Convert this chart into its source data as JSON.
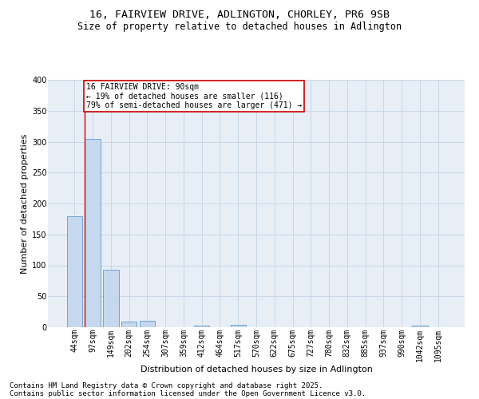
{
  "title_line1": "16, FAIRVIEW DRIVE, ADLINGTON, CHORLEY, PR6 9SB",
  "title_line2": "Size of property relative to detached houses in Adlington",
  "xlabel": "Distribution of detached houses by size in Adlington",
  "ylabel": "Number of detached properties",
  "categories": [
    "44sqm",
    "97sqm",
    "149sqm",
    "202sqm",
    "254sqm",
    "307sqm",
    "359sqm",
    "412sqm",
    "464sqm",
    "517sqm",
    "570sqm",
    "622sqm",
    "675sqm",
    "727sqm",
    "780sqm",
    "832sqm",
    "885sqm",
    "937sqm",
    "990sqm",
    "1042sqm",
    "1095sqm"
  ],
  "values": [
    180,
    305,
    93,
    9,
    10,
    0,
    0,
    3,
    0,
    4,
    0,
    0,
    0,
    0,
    0,
    0,
    0,
    0,
    0,
    3,
    0
  ],
  "bar_color": "#c5d8ed",
  "bar_edgecolor": "#5b9bd5",
  "vline_x_index": 0.575,
  "annotation_text": "16 FAIRVIEW DRIVE: 90sqm\n← 19% of detached houses are smaller (116)\n79% of semi-detached houses are larger (471) →",
  "annotation_box_color": "#ffffff",
  "annotation_box_edgecolor": "#cc0000",
  "vline_color": "#cc0000",
  "ylim": [
    0,
    400
  ],
  "yticks": [
    0,
    50,
    100,
    150,
    200,
    250,
    300,
    350,
    400
  ],
  "grid_color": "#c8d8e8",
  "background_color": "#e8eef5",
  "footer_line1": "Contains HM Land Registry data © Crown copyright and database right 2025.",
  "footer_line2": "Contains public sector information licensed under the Open Government Licence v3.0.",
  "title_fontsize": 9.5,
  "subtitle_fontsize": 8.5,
  "axis_label_fontsize": 8,
  "tick_fontsize": 7,
  "annotation_fontsize": 7,
  "footer_fontsize": 6.5
}
